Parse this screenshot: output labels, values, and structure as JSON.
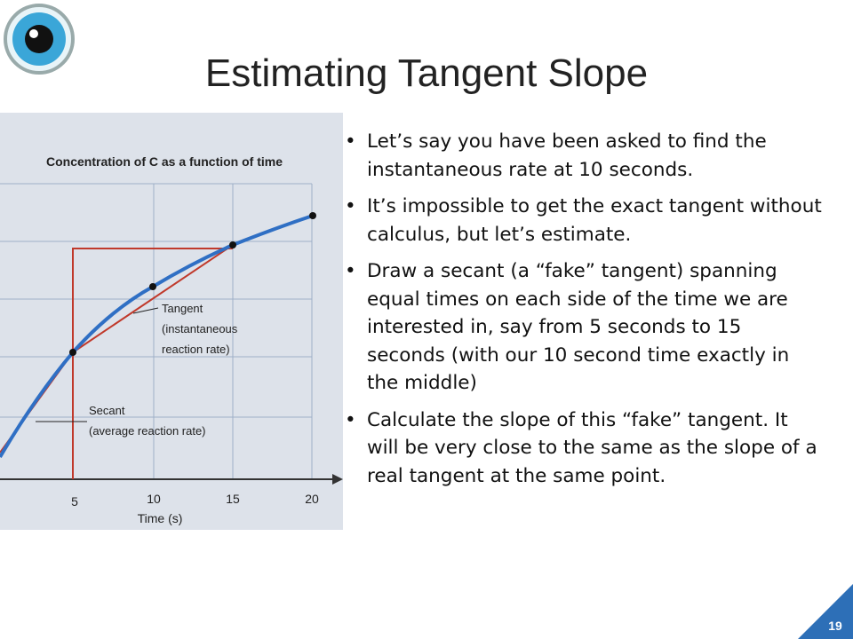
{
  "header": {
    "title": "Estimating Tangent Slope"
  },
  "figure": {
    "title": "Concentration of C as a function of time",
    "x_label": "Time (s)",
    "x_ticks": [
      5,
      10,
      15,
      20
    ],
    "tangent_label": [
      "Tangent",
      "(instantaneous",
      "reaction rate)"
    ],
    "secant_label": [
      "Secant",
      "(average reaction rate)"
    ]
  },
  "bullets": [
    "Let’s say you have been asked to find the instantaneous rate at 10 seconds.",
    "It’s impossible to get the exact tangent without calculus, but let’s estimate.",
    "Draw a secant (a “fake” tangent) spanning equal times on each side of the time we are interested in, say from 5 seconds to 15 seconds (with our 10 second time exactly in the middle)",
    "Calculate the slope of this “fake” tangent.  It will be very close to the same as the slope of a real tangent at the same point."
  ],
  "page_number": 19
}
